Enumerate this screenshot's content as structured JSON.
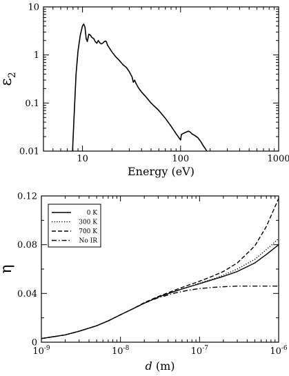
{
  "chart_data": [
    {
      "type": "line",
      "xlabel": "Energy (eV)",
      "ylabel_symbol": "ε",
      "ylabel_subscript": "2",
      "xscale": "log",
      "yscale": "log",
      "xlim": [
        4,
        1000
      ],
      "ylim": [
        0.01,
        10
      ],
      "xticks": [
        {
          "value": 10,
          "label": "10"
        },
        {
          "value": 100,
          "label": "100"
        },
        {
          "value": 1000,
          "label": "1000"
        }
      ],
      "yticks": [
        {
          "value": 0.01,
          "label": "0.01"
        },
        {
          "value": 0.1,
          "label": "0.1"
        },
        {
          "value": 1,
          "label": "1"
        },
        {
          "value": 10,
          "label": "10"
        }
      ],
      "legend": "none",
      "grid": false,
      "series": [
        {
          "color": "#000000",
          "x": [
            7.8,
            8.2,
            8.6,
            9.0,
            9.5,
            10.0,
            10.3,
            10.6,
            10.9,
            11.2,
            11.6,
            12.0,
            12.5,
            13.0,
            13.5,
            14.0,
            14.5,
            15.0,
            15.5,
            16.0,
            16.5,
            17.0,
            17.5,
            18.0,
            19.0,
            20.0,
            22.0,
            24.0,
            26.0,
            28.0,
            30.0,
            32.0,
            33.0,
            34.0,
            35.0,
            37.0,
            40.0,
            45.0,
            50.0,
            60.0,
            70.0,
            80.0,
            90.0,
            98.0,
            100.0,
            102.0,
            105.0,
            110.0,
            115.0,
            120.0,
            125.0,
            130.0,
            140.0,
            150.0,
            160.0,
            170.0,
            180.0,
            185.0
          ],
          "y": [
            0.005,
            0.05,
            0.4,
            1.2,
            2.6,
            4.0,
            4.4,
            3.8,
            2.2,
            1.9,
            2.7,
            2.6,
            2.3,
            2.2,
            1.9,
            1.75,
            2.0,
            1.8,
            1.7,
            1.75,
            1.85,
            1.95,
            1.9,
            1.6,
            1.35,
            1.15,
            0.9,
            0.75,
            0.62,
            0.55,
            0.45,
            0.35,
            0.27,
            0.3,
            0.26,
            0.21,
            0.17,
            0.13,
            0.1,
            0.07,
            0.048,
            0.033,
            0.023,
            0.018,
            0.017,
            0.022,
            0.023,
            0.024,
            0.025,
            0.026,
            0.025,
            0.023,
            0.021,
            0.019,
            0.016,
            0.013,
            0.011,
            0.01
          ]
        }
      ]
    },
    {
      "type": "line",
      "xlabel_italic": "d",
      "xlabel_rest": " (m)",
      "ylabel": "η",
      "xscale": "log",
      "yscale": "linear",
      "xlim": [
        1e-09,
        1e-06
      ],
      "ylim": [
        0,
        0.12
      ],
      "xticks": [
        {
          "value": 1e-09,
          "base": "10",
          "exp": "-9"
        },
        {
          "value": 1e-08,
          "base": "10",
          "exp": "-8"
        },
        {
          "value": 1e-07,
          "base": "10",
          "exp": "-7"
        },
        {
          "value": 1e-06,
          "base": "10",
          "exp": "-6"
        }
      ],
      "yticks": [
        {
          "value": 0,
          "label": "0"
        },
        {
          "value": 0.04,
          "label": "0.04"
        },
        {
          "value": 0.08,
          "label": "0.08"
        },
        {
          "value": 0.12,
          "label": "0.12"
        }
      ],
      "legend": "top-left",
      "grid": false,
      "series": [
        {
          "name": "0 K",
          "dash": "solid",
          "x": [
            1e-09,
            2e-09,
            3e-09,
            5e-09,
            7e-09,
            1e-08,
            1.5e-08,
            2e-08,
            3e-08,
            5e-08,
            7e-08,
            1e-07,
            1.5e-07,
            2e-07,
            3e-07,
            5e-07,
            7e-07,
            1e-06
          ],
          "y": [
            0.003,
            0.006,
            0.009,
            0.0135,
            0.0175,
            0.0225,
            0.028,
            0.032,
            0.037,
            0.042,
            0.045,
            0.048,
            0.0515,
            0.054,
            0.058,
            0.065,
            0.072,
            0.08
          ]
        },
        {
          "name": "300 K",
          "dash": "dotted",
          "x": [
            1e-09,
            2e-09,
            3e-09,
            5e-09,
            7e-09,
            1e-08,
            1.5e-08,
            2e-08,
            3e-08,
            5e-08,
            7e-08,
            1e-07,
            1.5e-07,
            2e-07,
            3e-07,
            5e-07,
            7e-07,
            1e-06
          ],
          "y": [
            0.003,
            0.006,
            0.009,
            0.0135,
            0.0175,
            0.0225,
            0.028,
            0.032,
            0.037,
            0.042,
            0.045,
            0.0485,
            0.052,
            0.055,
            0.06,
            0.068,
            0.076,
            0.085
          ]
        },
        {
          "name": "700 K",
          "dash": "dashed",
          "x": [
            1e-09,
            2e-09,
            3e-09,
            5e-09,
            7e-09,
            1e-08,
            1.5e-08,
            2e-08,
            3e-08,
            5e-08,
            7e-08,
            1e-07,
            1.5e-07,
            2e-07,
            3e-07,
            5e-07,
            7e-07,
            1e-06
          ],
          "y": [
            0.003,
            0.006,
            0.009,
            0.0135,
            0.0175,
            0.0225,
            0.028,
            0.0325,
            0.0375,
            0.043,
            0.0465,
            0.05,
            0.0545,
            0.058,
            0.065,
            0.079,
            0.095,
            0.118
          ]
        },
        {
          "name": "No IR",
          "dash": "dashdot",
          "x": [
            1e-09,
            2e-09,
            3e-09,
            5e-09,
            7e-09,
            1e-08,
            1.5e-08,
            2e-08,
            3e-08,
            5e-08,
            7e-08,
            1e-07,
            1.5e-07,
            2e-07,
            3e-07,
            5e-07,
            7e-07,
            1e-06
          ],
          "y": [
            0.003,
            0.006,
            0.009,
            0.0135,
            0.0175,
            0.0225,
            0.028,
            0.032,
            0.0365,
            0.0405,
            0.0425,
            0.044,
            0.045,
            0.0455,
            0.046,
            0.046,
            0.046,
            0.046
          ]
        }
      ]
    }
  ]
}
